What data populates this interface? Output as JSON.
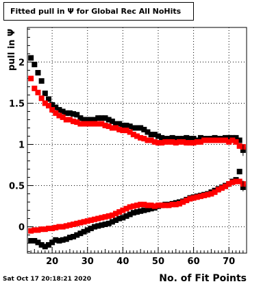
{
  "title": "Fitted pull in  Ψ  for Global Rec All NoHits",
  "timestamp": "Sat Oct 17 20:18:21 2020",
  "chart_data": {
    "type": "scatter",
    "xlabel": "No. of Fit Points",
    "ylabel": "pull in  Ψ",
    "xlim": [
      13,
      75
    ],
    "ylim": [
      -0.32,
      2.42
    ],
    "xticks": [
      20,
      30,
      40,
      50,
      60,
      70
    ],
    "yticks": [
      0,
      0.5,
      1,
      1.5,
      2
    ],
    "ytick_labels": [
      "0",
      "0.5",
      "1",
      "1.5",
      "2"
    ],
    "grid": true,
    "series": [
      {
        "color": "#000000",
        "x": [
          14,
          15,
          16,
          17,
          18,
          19,
          20,
          21,
          22,
          23,
          24,
          25,
          26,
          27,
          28,
          29,
          30,
          31,
          32,
          33,
          34,
          35,
          36,
          37,
          38,
          39,
          40,
          41,
          42,
          43,
          44,
          45,
          46,
          47,
          48,
          49,
          50,
          51,
          52,
          53,
          54,
          55,
          56,
          57,
          58,
          59,
          60,
          61,
          62,
          63,
          64,
          65,
          66,
          67,
          68,
          69,
          70,
          71,
          72,
          73,
          74
        ],
        "y": [
          2.05,
          1.97,
          1.87,
          1.77,
          1.62,
          1.55,
          1.48,
          1.45,
          1.42,
          1.4,
          1.38,
          1.38,
          1.37,
          1.36,
          1.32,
          1.3,
          1.3,
          1.3,
          1.3,
          1.32,
          1.32,
          1.32,
          1.3,
          1.28,
          1.25,
          1.25,
          1.23,
          1.23,
          1.22,
          1.2,
          1.2,
          1.2,
          1.18,
          1.15,
          1.12,
          1.12,
          1.1,
          1.08,
          1.07,
          1.07,
          1.08,
          1.07,
          1.07,
          1.07,
          1.08,
          1.07,
          1.07,
          1.05,
          1.08,
          1.07,
          1.07,
          1.07,
          1.08,
          1.07,
          1.07,
          1.08,
          1.08,
          1.08,
          1.08,
          1.05,
          0.93
        ]
      },
      {
        "color": "#ff0000",
        "x": [
          14,
          15,
          16,
          17,
          18,
          19,
          20,
          21,
          22,
          23,
          24,
          25,
          26,
          27,
          28,
          29,
          30,
          31,
          32,
          33,
          34,
          35,
          36,
          37,
          38,
          39,
          40,
          41,
          42,
          43,
          44,
          45,
          46,
          47,
          48,
          49,
          50,
          51,
          52,
          53,
          54,
          55,
          56,
          57,
          58,
          59,
          60,
          61,
          62,
          63,
          64,
          65,
          66,
          67,
          68,
          69,
          70,
          71,
          72,
          73,
          74
        ],
        "y": [
          1.8,
          1.68,
          1.63,
          1.56,
          1.5,
          1.47,
          1.42,
          1.38,
          1.35,
          1.33,
          1.3,
          1.3,
          1.28,
          1.27,
          1.25,
          1.25,
          1.25,
          1.25,
          1.25,
          1.25,
          1.25,
          1.23,
          1.22,
          1.2,
          1.2,
          1.18,
          1.17,
          1.17,
          1.15,
          1.12,
          1.1,
          1.08,
          1.07,
          1.05,
          1.05,
          1.03,
          1.02,
          1.02,
          1.03,
          1.03,
          1.03,
          1.02,
          1.03,
          1.03,
          1.02,
          1.02,
          1.02,
          1.03,
          1.03,
          1.05,
          1.05,
          1.05,
          1.05,
          1.05,
          1.05,
          1.05,
          1.03,
          1.05,
          1.03,
          0.98,
          0.97
        ]
      },
      {
        "color": "#000000",
        "x": [
          14,
          15,
          16,
          17,
          18,
          19,
          20,
          21,
          22,
          23,
          24,
          25,
          26,
          27,
          28,
          29,
          30,
          31,
          32,
          33,
          34,
          35,
          36,
          37,
          38,
          39,
          40,
          41,
          42,
          43,
          44,
          45,
          46,
          47,
          48,
          49,
          50,
          51,
          52,
          53,
          54,
          55,
          56,
          57,
          58,
          59,
          60,
          61,
          62,
          63,
          64,
          65,
          66,
          67,
          68,
          69,
          70,
          71,
          72,
          73,
          74
        ],
        "y": [
          -0.17,
          -0.17,
          -0.19,
          -0.22,
          -0.24,
          -0.22,
          -0.19,
          -0.16,
          -0.17,
          -0.16,
          -0.15,
          -0.13,
          -0.12,
          -0.1,
          -0.08,
          -0.06,
          -0.04,
          -0.02,
          0.0,
          0.01,
          0.02,
          0.03,
          0.04,
          0.06,
          0.08,
          0.1,
          0.11,
          0.13,
          0.15,
          0.17,
          0.18,
          0.19,
          0.2,
          0.21,
          0.22,
          0.23,
          0.25,
          0.26,
          0.27,
          0.27,
          0.28,
          0.29,
          0.3,
          0.31,
          0.33,
          0.35,
          0.36,
          0.37,
          0.38,
          0.39,
          0.4,
          0.42,
          0.44,
          0.46,
          0.48,
          0.5,
          0.52,
          0.55,
          0.57,
          0.67,
          0.48
        ]
      },
      {
        "color": "#ff0000",
        "x": [
          14,
          15,
          16,
          17,
          18,
          19,
          20,
          21,
          22,
          23,
          24,
          25,
          26,
          27,
          28,
          29,
          30,
          31,
          32,
          33,
          34,
          35,
          36,
          37,
          38,
          39,
          40,
          41,
          42,
          43,
          44,
          45,
          46,
          47,
          48,
          49,
          50,
          51,
          52,
          53,
          54,
          55,
          56,
          57,
          58,
          59,
          60,
          61,
          62,
          63,
          64,
          65,
          66,
          67,
          68,
          69,
          70,
          71,
          72,
          73,
          74
        ],
        "y": [
          -0.05,
          -0.04,
          -0.04,
          -0.03,
          -0.03,
          -0.02,
          -0.02,
          -0.01,
          0.0,
          0.0,
          0.01,
          0.02,
          0.03,
          0.04,
          0.05,
          0.06,
          0.07,
          0.08,
          0.09,
          0.1,
          0.11,
          0.12,
          0.13,
          0.14,
          0.16,
          0.18,
          0.2,
          0.22,
          0.24,
          0.25,
          0.26,
          0.27,
          0.27,
          0.26,
          0.26,
          0.25,
          0.26,
          0.26,
          0.26,
          0.26,
          0.27,
          0.27,
          0.28,
          0.3,
          0.32,
          0.34,
          0.35,
          0.36,
          0.37,
          0.38,
          0.39,
          0.4,
          0.42,
          0.45,
          0.47,
          0.49,
          0.52,
          0.54,
          0.55,
          0.55,
          0.52
        ]
      }
    ]
  }
}
